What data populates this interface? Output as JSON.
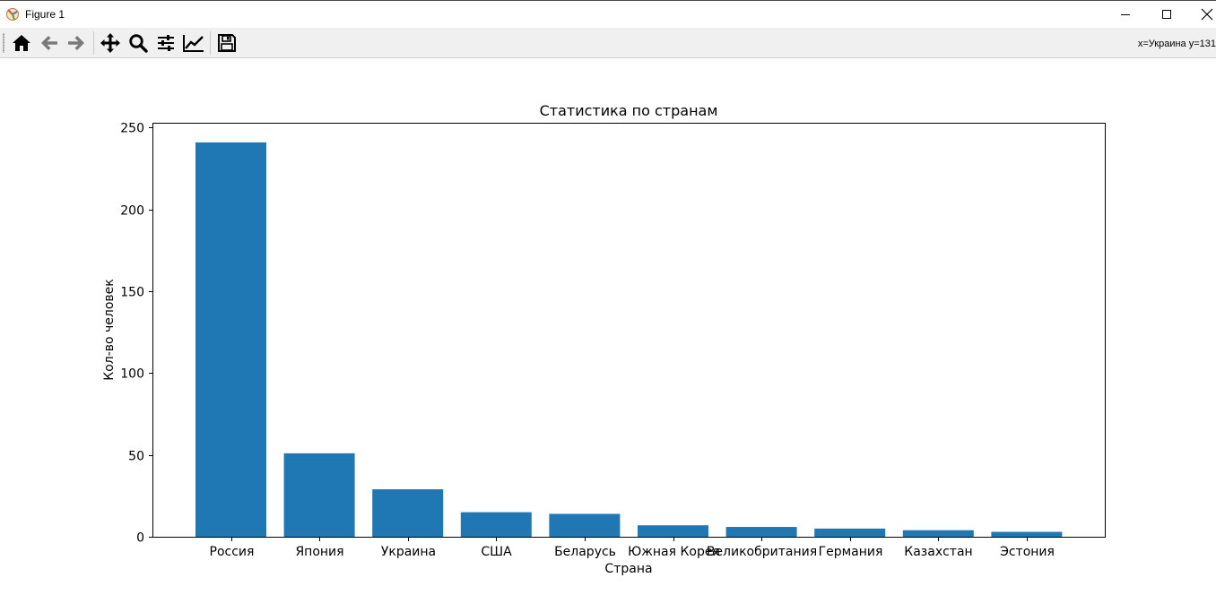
{
  "window": {
    "title": "Figure 1",
    "controls": {
      "minimize_icon": "minimize-icon",
      "maximize_icon": "maximize-icon",
      "close_icon": "close-icon"
    }
  },
  "toolbar": {
    "buttons": [
      {
        "name": "home-button",
        "icon": "home-icon"
      },
      {
        "name": "back-button",
        "icon": "arrow-left-icon"
      },
      {
        "name": "forward-button",
        "icon": "arrow-right-icon"
      },
      {
        "name": "pan-button",
        "icon": "move-icon"
      },
      {
        "name": "zoom-button",
        "icon": "magnifier-icon"
      },
      {
        "name": "subplots-button",
        "icon": "sliders-icon"
      },
      {
        "name": "customize-button",
        "icon": "line-chart-icon"
      },
      {
        "name": "save-button",
        "icon": "floppy-disk-icon"
      }
    ],
    "coords_text": "x=Украина y=131"
  },
  "colors": {
    "bar": "#1f77b4",
    "toolbar_bg": "#f0f0f0",
    "icon": "#000000",
    "icon_disabled": "#7a7a7a"
  },
  "chart_data": {
    "type": "bar",
    "title": "Статистика по странам",
    "xlabel": "Страна",
    "ylabel": "Кол-во человек",
    "categories": [
      "Россия",
      "Япония",
      "Украина",
      "США",
      "Беларусь",
      "Южная Корея",
      "Великобритания",
      "Германия",
      "Казахстан",
      "Эстония"
    ],
    "values": [
      241,
      51,
      29,
      15,
      14,
      7,
      6,
      5,
      4,
      3
    ],
    "ylim": [
      0,
      253
    ],
    "yticks": [
      0,
      50,
      100,
      150,
      200,
      250
    ],
    "grid": false,
    "legend": "none"
  }
}
